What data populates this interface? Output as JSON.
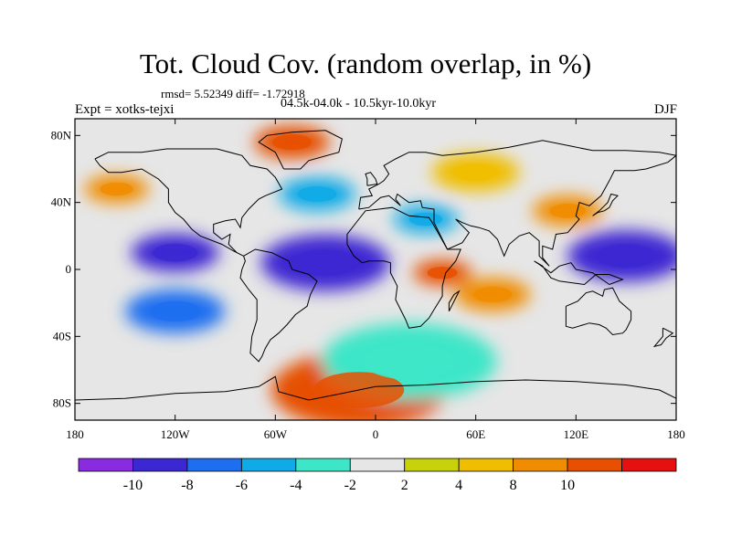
{
  "title": "Tot. Cloud Cov. (random overlap, in %)",
  "stats_line": "rmsd= 5.52349 diff= -1.72918",
  "experiment_label": "Expt = xotks-tejxi",
  "period_label": "04.5k-04.0k - 10.5kyr-10.0kyr",
  "season_label": "DJF",
  "chart_data": {
    "type": "heatmap",
    "title": "Tot. Cloud Cov. (random overlap, in %)",
    "variable": "Total cloud cover difference (%)",
    "x_range": [
      -180,
      180
    ],
    "y_range": [
      -90,
      90
    ],
    "x_ticks": [
      {
        "value": -180,
        "label": "180"
      },
      {
        "value": -120,
        "label": "120W"
      },
      {
        "value": -60,
        "label": "60W"
      },
      {
        "value": 0,
        "label": "0"
      },
      {
        "value": 60,
        "label": "60E"
      },
      {
        "value": 120,
        "label": "120E"
      },
      {
        "value": 180,
        "label": "180"
      }
    ],
    "y_ticks": [
      {
        "value": 80,
        "label": "80N"
      },
      {
        "value": 40,
        "label": "40N"
      },
      {
        "value": 0,
        "label": "0"
      },
      {
        "value": -40,
        "label": "40S"
      },
      {
        "value": -80,
        "label": "80S"
      }
    ],
    "colorbar": {
      "colors": [
        "#8a2be2",
        "#3c28d2",
        "#1e6ef0",
        "#10aae6",
        "#3ee6c8",
        "#e6e6e6",
        "#c8d20a",
        "#f0be00",
        "#f08c00",
        "#e65000",
        "#e61010"
      ],
      "bounds": [
        -10,
        -8,
        -6,
        -4,
        -2,
        2,
        4,
        8,
        10
      ],
      "labels": [
        "-10",
        "-8",
        "-6",
        "-4",
        "-2",
        "2",
        "4",
        "8",
        "10"
      ]
    },
    "anomalies": [
      {
        "region": "Arctic / Greenland",
        "lon": -50,
        "lat": 76,
        "value": 10
      },
      {
        "region": "North Pacific",
        "lon": -155,
        "lat": 48,
        "value": 8
      },
      {
        "region": "Eurasia north",
        "lon": 60,
        "lat": 58,
        "value": 6
      },
      {
        "region": "East Asia",
        "lon": 115,
        "lat": 35,
        "value": 8
      },
      {
        "region": "East Africa",
        "lon": 40,
        "lat": -2,
        "value": 10
      },
      {
        "region": "Indian Ocean south",
        "lon": 70,
        "lat": -15,
        "value": 8
      },
      {
        "region": "Antarctic coast",
        "lon": -10,
        "lat": -72,
        "value": 10
      },
      {
        "region": "Tropical Pacific",
        "lon": 150,
        "lat": 8,
        "value": -10
      },
      {
        "region": "Tropical Atlantic",
        "lon": -30,
        "lat": 4,
        "value": -10
      },
      {
        "region": "Eastern Pacific",
        "lon": -120,
        "lat": 10,
        "value": -10
      },
      {
        "region": "South Pacific",
        "lon": -120,
        "lat": -25,
        "value": -8
      },
      {
        "region": "North Atlantic",
        "lon": -35,
        "lat": 45,
        "value": -6
      },
      {
        "region": "Middle East",
        "lon": 30,
        "lat": 30,
        "value": -6
      },
      {
        "region": "Southern Ocean",
        "lon": 20,
        "lat": -55,
        "value": -4
      }
    ]
  }
}
